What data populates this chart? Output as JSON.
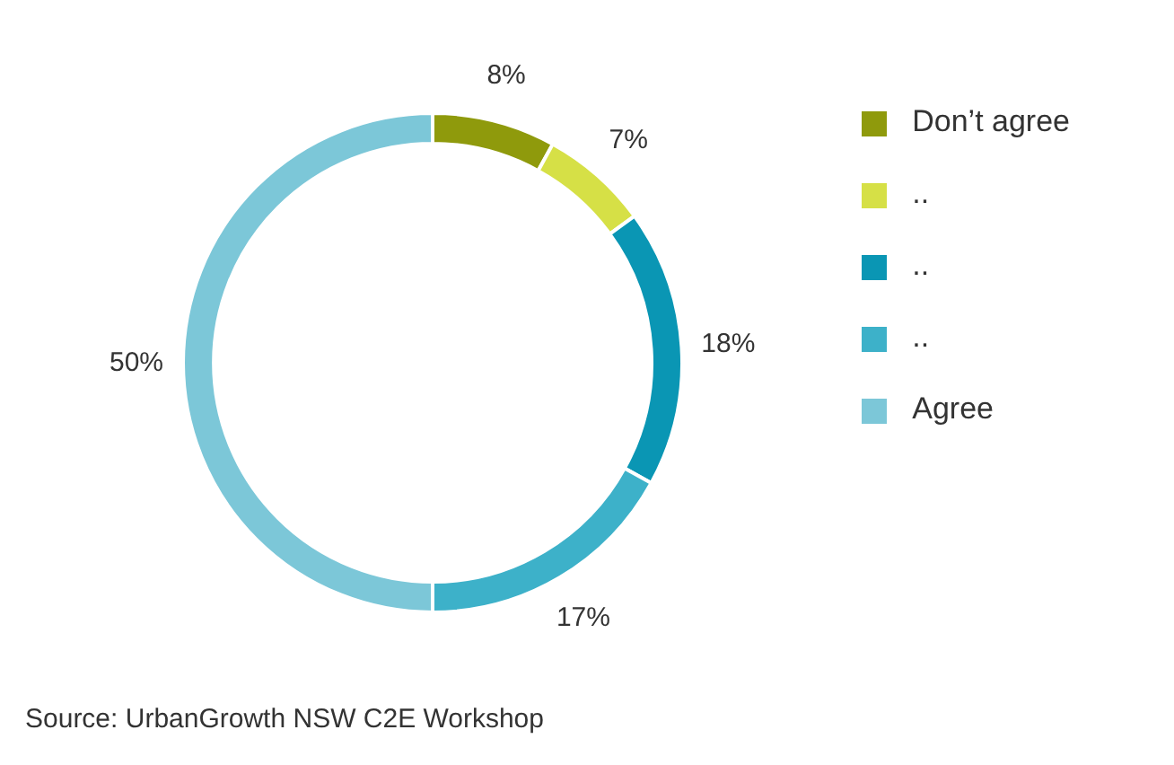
{
  "chart_data": {
    "type": "donut",
    "categories": [
      "Don’t agree",
      "..",
      "..",
      "..",
      "Agree"
    ],
    "values": [
      8,
      7,
      18,
      17,
      50
    ],
    "colors": [
      "#8f9a0c",
      "#d6e046",
      "#0a96b4",
      "#3db1c9",
      "#7cc7d8"
    ],
    "value_labels": [
      "8%",
      "7%",
      "18%",
      "17%",
      "50%"
    ],
    "legend": "top right",
    "annotations": [
      "Source: UrbanGrowth NSW C2E Workshop"
    ]
  }
}
